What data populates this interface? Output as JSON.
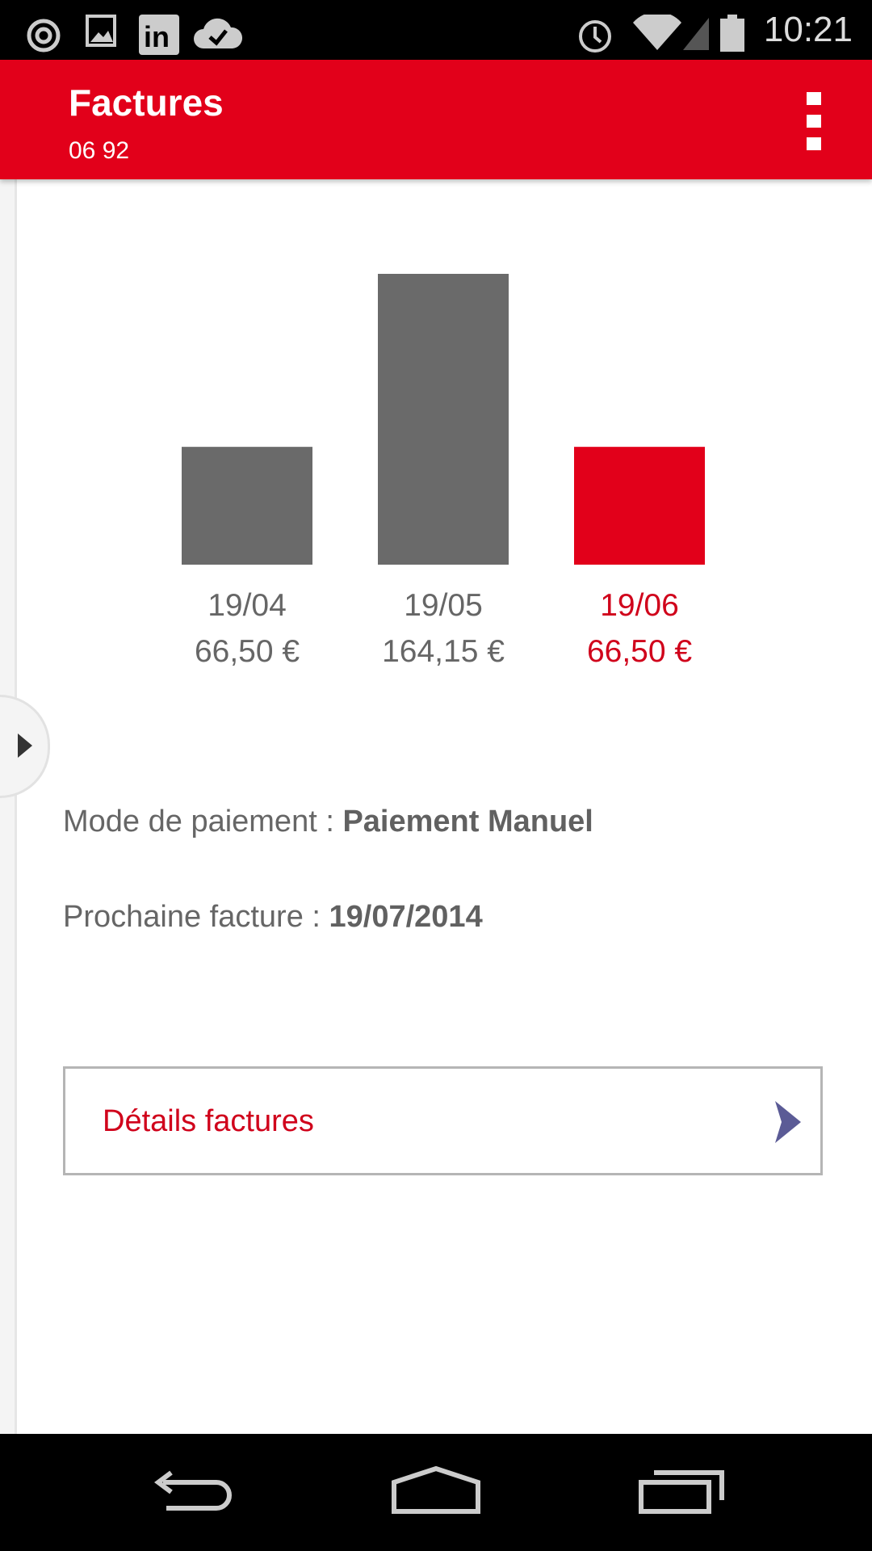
{
  "status_bar": {
    "time": "10:21",
    "icons": [
      "sync-icon",
      "image-icon",
      "linkedin-icon",
      "cloud-check-icon",
      "alarm-icon",
      "wifi-icon",
      "signal-icon",
      "battery-icon"
    ]
  },
  "app_bar": {
    "title": "Factures",
    "subtitle": "06 92",
    "menu_icon": "more-vert-icon"
  },
  "colors": {
    "accent": "#e2001a",
    "bar": "#6a6a6a",
    "highlight_text": "#d0021b",
    "chevron": "#5b5b96"
  },
  "chart_data": {
    "type": "bar",
    "categories": [
      "19/04",
      "19/05",
      "19/06"
    ],
    "values": [
      66.5,
      164.15,
      66.5
    ],
    "value_labels": [
      "66,50 €",
      "164,15 €",
      "66,50 €"
    ],
    "highlighted_index": 2,
    "ylim": [
      0,
      164.15
    ],
    "grid": false
  },
  "info": {
    "payment_label": "Mode de paiement : ",
    "payment_value": "Paiement Manuel",
    "next_label": "Prochaine facture : ",
    "next_value": "19/07/2014"
  },
  "details_button": {
    "label": "Détails factures"
  },
  "nav_bar": {
    "icons": [
      "back-icon",
      "home-icon",
      "recent-apps-icon"
    ]
  }
}
